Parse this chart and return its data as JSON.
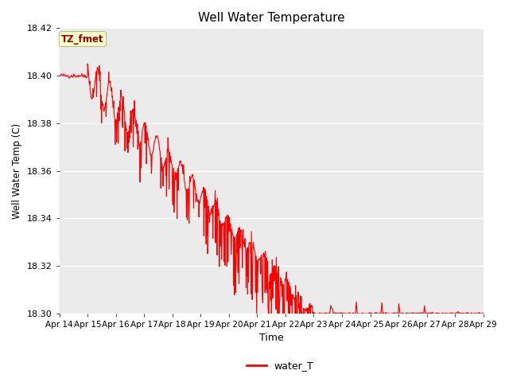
{
  "title": "Well Water Temperature",
  "xlabel": "Time",
  "ylabel": "Well Water Temp (C)",
  "ylim": [
    18.3,
    18.42
  ],
  "yticks": [
    18.3,
    18.32,
    18.34,
    18.36,
    18.38,
    18.4,
    18.42
  ],
  "line_color": "#FF0000",
  "line_width": 0.8,
  "bg_color": "#EBEBEB",
  "legend_label": "water_T",
  "tz_label": "TZ_fmet",
  "tz_box_color": "#FFFFCC",
  "tz_text_color": "#990000",
  "x_tick_labels": [
    "Apr 14",
    "Apr 15",
    "Apr 16",
    "Apr 17",
    "Apr 18",
    "Apr 19",
    "Apr 20",
    "Apr 21",
    "Apr 22",
    "Apr 23",
    "Apr 24",
    "Apr 25",
    "Apr 26",
    "Apr 27",
    "Apr 28",
    "Apr 29"
  ]
}
